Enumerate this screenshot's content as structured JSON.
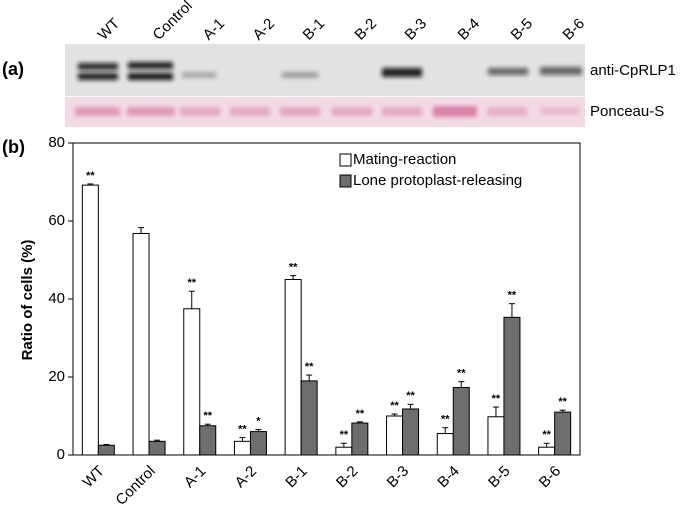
{
  "blot": {
    "panel_label": "(a)",
    "lanes": [
      "WT",
      "Control",
      "A-1",
      "A-2",
      "B-1",
      "B-2",
      "B-3",
      "B-4",
      "B-5",
      "B-6"
    ],
    "rows": [
      "anti-CpRLP1",
      "Ponceau-S"
    ]
  },
  "chart_data": {
    "type": "bar",
    "panel_label": "(b)",
    "ylabel": "Ratio of cells (%)",
    "categories": [
      "WT",
      "Control",
      "A-1",
      "A-2",
      "B-1",
      "B-2",
      "B-3",
      "B-4",
      "B-5",
      "B-6"
    ],
    "series": [
      {
        "name": "Mating-reaction",
        "color": "#ffffff",
        "values": [
          69.2,
          56.8,
          37.5,
          3.5,
          45,
          2,
          10,
          5.5,
          9.8,
          2
        ],
        "errors": [
          0.3,
          1.5,
          4.5,
          1,
          1,
          1,
          0.5,
          1.5,
          2.5,
          1
        ],
        "labels": [
          "**",
          null,
          "**",
          "**",
          "**",
          "**",
          "**",
          "**",
          "**",
          "**"
        ]
      },
      {
        "name": "Lone protoplast-releasing",
        "color": "#6e6e6e",
        "values": [
          2.5,
          3.5,
          7.5,
          6,
          19,
          8.2,
          11.8,
          17.3,
          35.3,
          11
        ],
        "errors": [
          0.2,
          0.3,
          0.4,
          0.5,
          1.5,
          0.3,
          1.2,
          1.5,
          3.5,
          0.5
        ],
        "labels": [
          null,
          null,
          "**",
          "*",
          "**",
          "**",
          "**",
          "**",
          "**",
          "**"
        ]
      }
    ],
    "ylim": [
      0,
      80
    ],
    "yticks": [
      0,
      20,
      40,
      60,
      80
    ],
    "legend": "top-right",
    "grid": false
  }
}
